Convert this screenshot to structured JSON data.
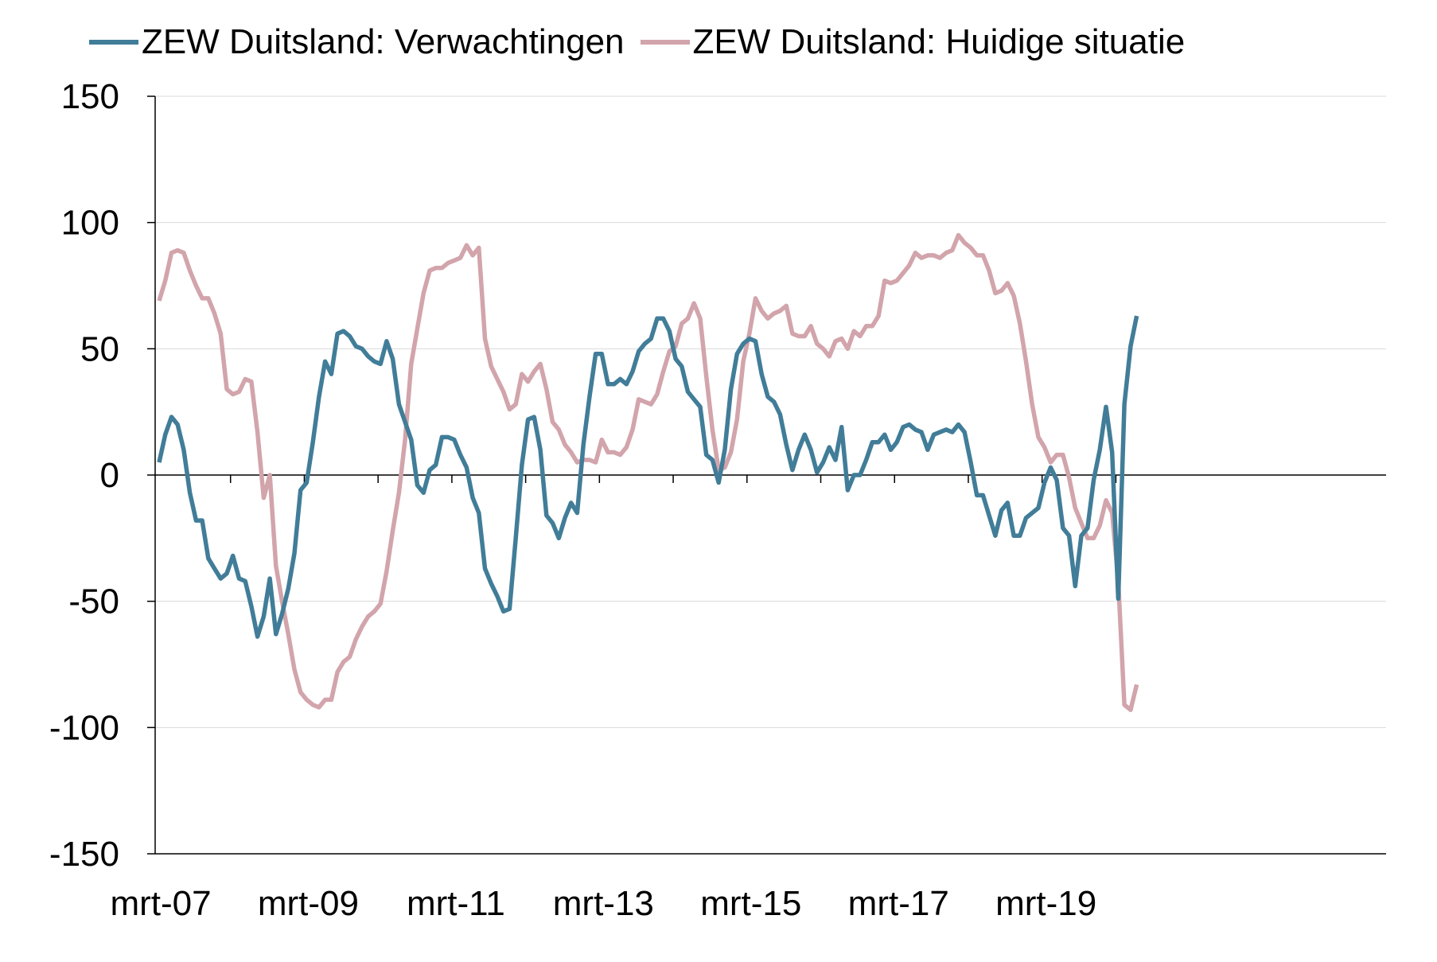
{
  "chart_data": {
    "type": "line",
    "title": "",
    "xlabel": "",
    "ylabel": "",
    "ylim": [
      -150,
      150
    ],
    "yticks": [
      150,
      100,
      50,
      0,
      -50,
      -100,
      -150
    ],
    "xtick_labels": [
      "mrt-07",
      "mrt-09",
      "mrt-11",
      "mrt-13",
      "mrt-15",
      "mrt-17",
      "mrt-19"
    ],
    "x_start": "2007-03",
    "x_frequency": "monthly",
    "legend_position": "top",
    "series": [
      {
        "name": "ZEW Duitsland: Verwachtingen",
        "color": "#417d98",
        "values": [
          5,
          16,
          23,
          20,
          10,
          -7,
          -18,
          -18,
          -33,
          -37,
          -41,
          -39,
          -32,
          -41,
          -42,
          -52,
          -64,
          -56,
          -41,
          -63,
          -55,
          -45,
          -31,
          -6,
          -3,
          13,
          31,
          45,
          40,
          56,
          57,
          55,
          51,
          50,
          47,
          45,
          44,
          53,
          46,
          28,
          21,
          14,
          -4,
          -7,
          2,
          4,
          15,
          15,
          14,
          8,
          3,
          -9,
          -15,
          -37,
          -43,
          -48,
          -54,
          -53,
          -25,
          4,
          22,
          23,
          10,
          -16,
          -19,
          -25,
          -17,
          -11,
          -15,
          12,
          31,
          48,
          48,
          36,
          36,
          38,
          36,
          41,
          49,
          52,
          54,
          62,
          62,
          57,
          46,
          43,
          33,
          30,
          27,
          8,
          6,
          -3,
          10,
          34,
          48,
          52,
          54,
          53,
          40,
          31,
          29,
          24,
          12,
          2,
          10,
          16,
          10,
          1,
          5,
          11,
          6,
          19,
          -6,
          0,
          0,
          6,
          13,
          13,
          16,
          10,
          13,
          19,
          20,
          18,
          17,
          10,
          16,
          17,
          18,
          17,
          20,
          17,
          5,
          -8,
          -8,
          -16,
          -24,
          -14,
          -11,
          -24,
          -24,
          -17,
          -15,
          -13,
          -3,
          3,
          -2,
          -21,
          -24,
          -44,
          -24,
          -21,
          -2,
          10,
          27,
          9,
          -49,
          28,
          51,
          63
        ]
      },
      {
        "name": "ZEW Duitsland: Huidige situatie",
        "color": "#d2a4ab",
        "values": [
          69,
          77,
          88,
          89,
          88,
          81,
          75,
          70,
          70,
          64,
          56,
          34,
          32,
          33,
          38,
          37,
          17,
          -9,
          0,
          -36,
          -50,
          -63,
          -77,
          -86,
          -89,
          -91,
          -92,
          -89,
          -89,
          -78,
          -74,
          -72,
          -65,
          -60,
          -56,
          -54,
          -51,
          -38,
          -22,
          -7,
          14,
          44,
          58,
          72,
          81,
          82,
          82,
          84,
          85,
          86,
          91,
          87,
          90,
          54,
          43,
          38,
          33,
          26,
          28,
          40,
          37,
          41,
          44,
          34,
          21,
          18,
          12,
          9,
          5,
          6,
          6,
          5,
          14,
          9,
          9,
          8,
          11,
          18,
          30,
          29,
          28,
          32,
          41,
          49,
          51,
          60,
          62,
          68,
          62,
          39,
          18,
          2,
          3,
          9,
          22,
          45,
          56,
          70,
          65,
          62,
          64,
          65,
          67,
          56,
          55,
          55,
          59,
          52,
          50,
          47,
          53,
          54,
          50,
          57,
          55,
          59,
          59,
          63,
          77,
          76,
          77,
          80,
          83,
          88,
          86,
          87,
          87,
          86,
          88,
          89,
          95,
          92,
          90,
          87,
          87,
          81,
          72,
          73,
          76,
          71,
          60,
          45,
          28,
          15,
          11,
          5,
          8,
          8,
          -1,
          -13,
          -19,
          -25,
          -25,
          -20,
          -10,
          -15,
          -42,
          -91,
          -93,
          -83
        ]
      }
    ]
  }
}
